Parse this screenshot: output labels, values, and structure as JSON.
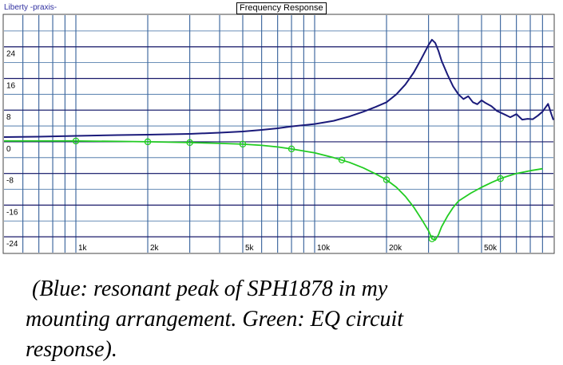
{
  "header": {
    "app_label": "Liberty -praxis-",
    "title": "Frequency Response"
  },
  "chart_data": {
    "type": "line",
    "title": "Frequency Response",
    "xscale": "log",
    "xlim": [
      500,
      100000
    ],
    "ylim": [
      -28,
      32
    ],
    "grid": true,
    "yticks": [
      24,
      16,
      8,
      0,
      -8,
      -16,
      -24
    ],
    "ytick_labels": [
      "24",
      "16",
      "8",
      "0",
      "-8",
      "-16",
      "-24"
    ],
    "xticks": [
      1000,
      2000,
      5000,
      10000,
      20000,
      50000
    ],
    "xtick_labels": [
      "1k",
      "2k",
      "5k",
      "10k",
      "20k",
      "50k"
    ],
    "series": [
      {
        "color": "#1a1a7a",
        "x": [
          500,
          700,
          1000,
          1500,
          2000,
          3000,
          4000,
          5000,
          6000,
          7000,
          8000,
          10000,
          12000,
          14000,
          16000,
          18000,
          20000,
          22000,
          24000,
          26000,
          28000,
          30000,
          31000,
          32000,
          33000,
          34000,
          36000,
          38000,
          40000,
          42000,
          44000,
          46000,
          48000,
          50000,
          52000,
          55000,
          58000,
          62000,
          66000,
          70000,
          74000,
          78000,
          82000,
          86000,
          90000,
          95000,
          98000,
          100000
        ],
        "y": [
          1.2,
          1.3,
          1.5,
          1.7,
          1.8,
          2.0,
          2.3,
          2.6,
          3.0,
          3.4,
          3.9,
          4.5,
          5.3,
          6.4,
          7.6,
          8.8,
          10.0,
          12.0,
          14.5,
          17.5,
          21.0,
          24.5,
          25.8,
          25.0,
          23.0,
          20.5,
          17.0,
          14.0,
          12.0,
          10.8,
          11.5,
          10.0,
          9.5,
          10.5,
          9.8,
          9.0,
          7.8,
          7.0,
          6.2,
          7.0,
          5.6,
          5.8,
          5.7,
          6.6,
          7.6,
          9.6,
          7.0,
          5.5
        ]
      },
      {
        "color": "#22cc22",
        "x": [
          500,
          1000,
          1500,
          2000,
          3000,
          4000,
          5000,
          6000,
          7000,
          8000,
          10000,
          12000,
          14000,
          16000,
          18000,
          20000,
          22000,
          24000,
          26000,
          28000,
          30000,
          31000,
          32000,
          33000,
          34000,
          36000,
          38000,
          40000,
          45000,
          50000,
          55000,
          60000,
          65000,
          70000,
          80000,
          90000
        ],
        "y": [
          0.2,
          0.2,
          0.1,
          0.0,
          -0.2,
          -0.4,
          -0.6,
          -0.9,
          -1.3,
          -1.8,
          -2.8,
          -4.0,
          -5.2,
          -6.6,
          -8.1,
          -9.6,
          -11.5,
          -13.8,
          -16.5,
          -19.5,
          -22.5,
          -24.5,
          -24.8,
          -23.5,
          -21.5,
          -18.8,
          -16.6,
          -15.0,
          -13.0,
          -11.5,
          -10.3,
          -9.3,
          -8.6,
          -8.0,
          -7.3,
          -6.8
        ]
      }
    ],
    "markers": {
      "series_index": 1,
      "x": [
        1000,
        2000,
        3000,
        5000,
        8000,
        13000,
        20000,
        31000,
        60000
      ],
      "y": [
        0.2,
        0.0,
        -0.2,
        -0.6,
        -1.8,
        -4.6,
        -9.6,
        -24.5,
        -9.3
      ]
    }
  },
  "caption": {
    "line1": "(Blue: resonant peak of SPH1878 in my",
    "line2": "mounting arrangement.  Green: EQ circuit",
    "line3": "response)."
  }
}
